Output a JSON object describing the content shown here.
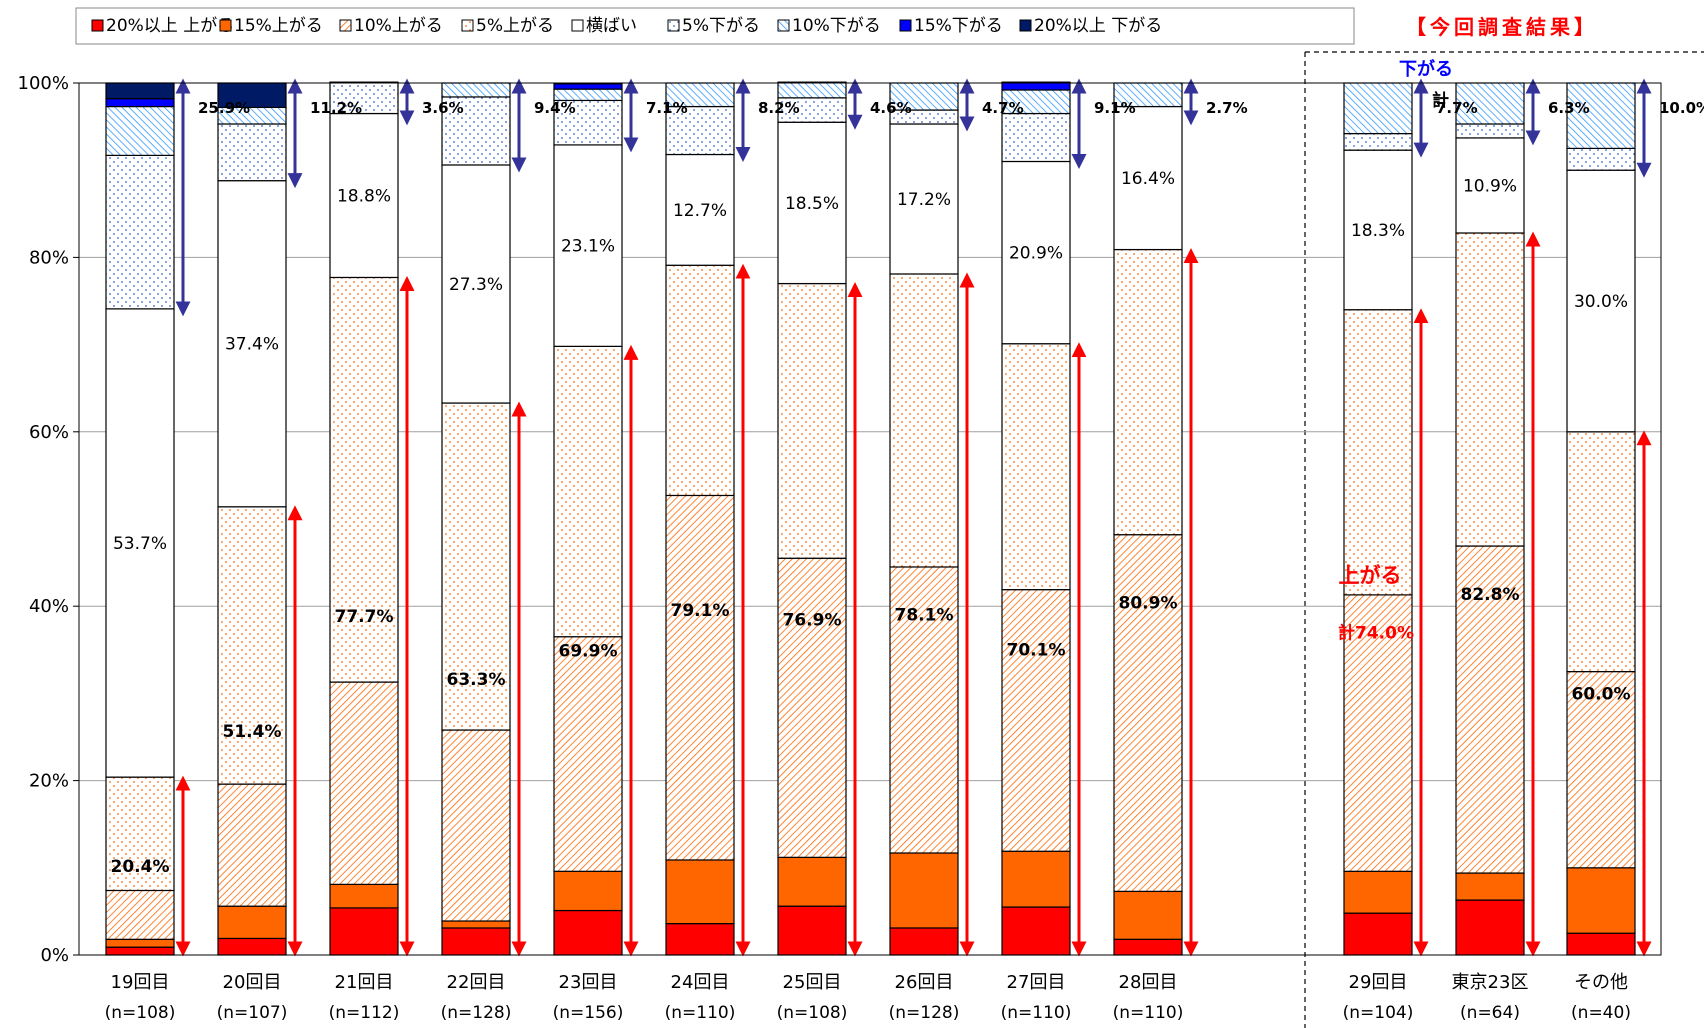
{
  "chart_data": {
    "type": "bar",
    "stacked": true,
    "title": "",
    "xlabel": "",
    "ylabel": "",
    "ylim": [
      0,
      100
    ],
    "yticks": [
      "0%",
      "20%",
      "40%",
      "60%",
      "80%",
      "100%"
    ],
    "grid": true,
    "legend_position": "top",
    "section_label": "【今回調査結果】",
    "categories": [
      "19回目",
      "20回目",
      "21回目",
      "22回目",
      "23回目",
      "24回目",
      "25回目",
      "26回目",
      "27回目",
      "28回目",
      "29回目",
      "東京23区",
      "その他"
    ],
    "category_n": [
      "(n=108)",
      "(n=107)",
      "(n=112)",
      "(n=128)",
      "(n=156)",
      "(n=110)",
      "(n=108)",
      "(n=128)",
      "(n=110)",
      "(n=110)",
      "(n=104)",
      "(n=64)",
      "(n=40)"
    ],
    "series": [
      {
        "name": "20%以上 上がる",
        "color": "#ff0000",
        "pattern": "solid",
        "values": [
          0.9,
          1.9,
          5.4,
          3.1,
          5.1,
          3.6,
          5.6,
          3.1,
          5.5,
          1.8,
          4.8,
          6.3,
          2.5
        ]
      },
      {
        "name": "15%上がる",
        "color": "#ff6600",
        "pattern": "solid",
        "values": [
          0.9,
          3.7,
          2.7,
          0.8,
          4.5,
          7.3,
          5.6,
          8.6,
          6.4,
          5.5,
          4.8,
          3.1,
          7.5
        ]
      },
      {
        "name": "10%上がる",
        "color": "#ff6600",
        "pattern": "hatch",
        "values": [
          5.6,
          14.0,
          23.2,
          21.9,
          26.9,
          41.8,
          34.3,
          32.8,
          30.0,
          40.9,
          31.7,
          37.5,
          22.5
        ]
      },
      {
        "name": "5%上がる",
        "color": "#ff6600",
        "pattern": "dots",
        "values": [
          13.0,
          31.8,
          46.4,
          37.5,
          33.3,
          26.4,
          31.5,
          33.6,
          28.2,
          32.7,
          32.7,
          35.9,
          27.5
        ]
      },
      {
        "name": "横ばい",
        "color": "#ffffff",
        "pattern": "solid",
        "values": [
          53.7,
          37.4,
          18.8,
          27.3,
          23.1,
          12.7,
          18.5,
          17.2,
          20.9,
          16.4,
          18.3,
          10.9,
          30.0
        ]
      },
      {
        "name": "5%下がる",
        "color": "#3366cc",
        "pattern": "dots",
        "values": [
          17.6,
          6.5,
          3.6,
          7.8,
          5.1,
          5.5,
          2.8,
          1.6,
          5.5,
          0,
          1.9,
          1.6,
          2.5
        ]
      },
      {
        "name": "10%下がる",
        "color": "#3399ff",
        "pattern": "hatch",
        "values": [
          5.6,
          1.9,
          0,
          1.6,
          1.3,
          2.7,
          1.8,
          3.1,
          2.7,
          2.7,
          5.8,
          4.7,
          7.5
        ]
      },
      {
        "name": "15%下がる",
        "color": "#0000ff",
        "pattern": "solid",
        "values": [
          0.9,
          0,
          0,
          0,
          0.6,
          0,
          0,
          0,
          0.9,
          0,
          0,
          0,
          0
        ]
      },
      {
        "name": "20%以上 下がる",
        "color": "#001a66",
        "pattern": "solid",
        "values": [
          1.8,
          2.8,
          0,
          0,
          0,
          0,
          0,
          0,
          0,
          0,
          0,
          0,
          0
        ]
      }
    ],
    "up_totals": [
      "20.4%",
      "51.4%",
      "77.7%",
      "63.3%",
      "69.9%",
      "79.1%",
      "76.9%",
      "78.1%",
      "70.1%",
      "80.9%",
      "計74.0%",
      "82.8%",
      "60.0%"
    ],
    "down_totals": [
      "25.9%",
      "11.2%",
      "3.6%",
      "9.4%",
      "7.1%",
      "8.2%",
      "4.6%",
      "4.7%",
      "9.1%",
      "2.7%",
      "7.7%",
      "6.3%",
      "10.0%"
    ],
    "flat_labels": [
      "53.7%",
      "37.4%",
      "18.8%",
      "27.3%",
      "23.1%",
      "12.7%",
      "18.5%",
      "17.2%",
      "20.9%",
      "16.4%",
      "18.3%",
      "10.9%",
      "30.0%"
    ],
    "annotations": {
      "up_label": "上がる",
      "down_label": "下がる",
      "down_kei": "計"
    }
  }
}
